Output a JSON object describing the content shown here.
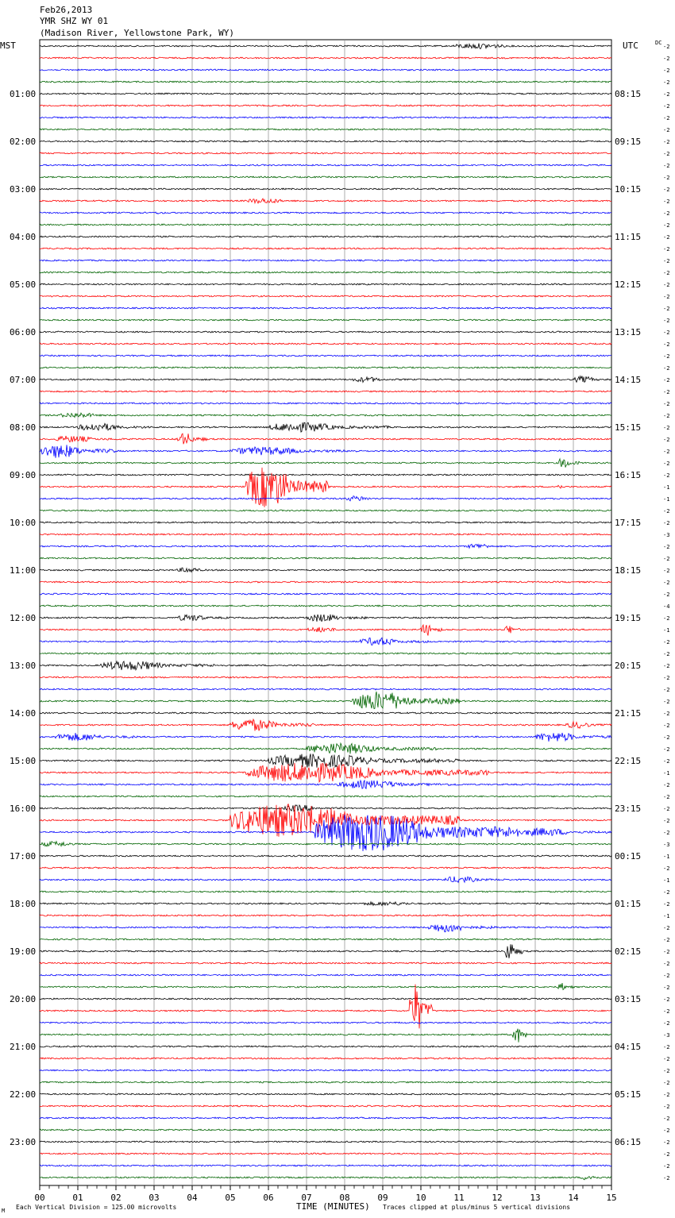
{
  "chart_data": {
    "type": "line",
    "title_lines": [
      "Feb26,2013",
      "YMR SHZ WY 01",
      "(Madison River, Yellowstone Park, WY)"
    ],
    "left_timezone": "MST",
    "right_timezone": "UTC",
    "dc_header": "DC",
    "xlabel": "TIME (MINUTES)",
    "x_ticks": [
      "00",
      "01",
      "02",
      "03",
      "04",
      "05",
      "06",
      "07",
      "08",
      "09",
      "10",
      "11",
      "12",
      "13",
      "14",
      "15"
    ],
    "xlim": [
      0,
      15
    ],
    "left_hour_labels": [
      "01:00",
      "02:00",
      "03:00",
      "04:00",
      "05:00",
      "06:00",
      "07:00",
      "08:00",
      "09:00",
      "10:00",
      "11:00",
      "12:00",
      "13:00",
      "14:00",
      "15:00",
      "16:00",
      "17:00",
      "18:00",
      "19:00",
      "20:00",
      "21:00",
      "22:00",
      "23:00"
    ],
    "right_hour_labels": [
      "08:15",
      "09:15",
      "10:15",
      "11:15",
      "12:15",
      "13:15",
      "14:15",
      "15:15",
      "16:15",
      "17:15",
      "18:15",
      "19:15",
      "20:15",
      "21:15",
      "22:15",
      "23:15",
      "00:15",
      "01:15",
      "02:15",
      "03:15",
      "04:15",
      "05:15",
      "06:15"
    ],
    "trace_colors": [
      "#000000",
      "#ff0000",
      "#0000ff",
      "#006400"
    ],
    "dc_offsets": [
      "-2",
      "-2",
      "-2",
      "-2",
      "-2",
      "-2",
      "-2",
      "-2",
      "-2",
      "-2",
      "-2",
      "-2",
      "-2",
      "-2",
      "-2",
      "-2",
      "-2",
      "-2",
      "-2",
      "-2",
      "-2",
      "-2",
      "-2",
      "-2",
      "-2",
      "-2",
      "-2",
      "-2",
      "-2",
      "-2",
      "-2",
      "-2",
      "-2",
      "-2",
      "-2",
      "-2",
      "-2",
      "-1",
      "-1",
      "-2",
      "-2",
      "-3",
      "-2",
      "-2",
      "-2",
      "-2",
      "-2",
      "-4",
      "-2",
      "-1",
      "-2",
      "-2",
      "-2",
      "-2",
      "-2",
      "-2",
      "-2",
      "-2",
      "-2",
      "-2",
      "-2",
      "-1",
      "-2",
      "-2",
      "-2",
      "-2",
      "-2",
      "-3",
      "-1",
      "-2",
      "-1",
      "-2",
      "-2",
      "-1",
      "-2",
      "-2",
      "-2",
      "-2",
      "-2",
      "-2",
      "-2",
      "-2",
      "-2",
      "-3",
      "-2",
      "-2",
      "-2",
      "-2",
      "-2",
      "-2",
      "-2",
      "-2",
      "-2",
      "-2",
      "-2",
      "-2"
    ],
    "footer_left": "Each Vertical Division =  125.00 microvolts",
    "footer_right": "Traces clipped at plus/minus 5 vertical divisions",
    "corner_mark": "M",
    "events": [
      {
        "line": 0,
        "start": 10.8,
        "end": 13.4,
        "amp": 4
      },
      {
        "line": 13,
        "start": 5.4,
        "end": 7.2,
        "amp": 4
      },
      {
        "line": 14,
        "start": 3.0,
        "end": 3.5,
        "amp": 2
      },
      {
        "line": 28,
        "start": 8.2,
        "end": 9.6,
        "amp": 4
      },
      {
        "line": 28,
        "start": 14.0,
        "end": 15.0,
        "amp": 5
      },
      {
        "line": 31,
        "start": 0.5,
        "end": 2.3,
        "amp": 4
      },
      {
        "line": 32,
        "start": 1.0,
        "end": 3.0,
        "amp": 6
      },
      {
        "line": 32,
        "start": 6.0,
        "end": 9.2,
        "amp": 7
      },
      {
        "line": 33,
        "start": 0.4,
        "end": 2.2,
        "amp": 5
      },
      {
        "line": 33,
        "start": 3.6,
        "end": 4.4,
        "amp": 9
      },
      {
        "line": 34,
        "start": 0.0,
        "end": 2.0,
        "amp": 10
      },
      {
        "line": 34,
        "start": 5.0,
        "end": 8.4,
        "amp": 6
      },
      {
        "line": 35,
        "start": 13.6,
        "end": 14.2,
        "amp": 8
      },
      {
        "line": 37,
        "start": 5.4,
        "end": 7.6,
        "amp": 30
      },
      {
        "line": 37,
        "start": 13.6,
        "end": 13.7,
        "amp": 12
      },
      {
        "line": 38,
        "start": 8.0,
        "end": 9.2,
        "amp": 4
      },
      {
        "line": 42,
        "start": 11.2,
        "end": 12.4,
        "amp": 4
      },
      {
        "line": 44,
        "start": 3.6,
        "end": 4.8,
        "amp": 4
      },
      {
        "line": 48,
        "start": 3.6,
        "end": 5.0,
        "amp": 5
      },
      {
        "line": 48,
        "start": 7.0,
        "end": 8.6,
        "amp": 6
      },
      {
        "line": 49,
        "start": 7.0,
        "end": 8.4,
        "amp": 4
      },
      {
        "line": 49,
        "start": 10.0,
        "end": 10.6,
        "amp": 9
      },
      {
        "line": 49,
        "start": 12.2,
        "end": 12.6,
        "amp": 7
      },
      {
        "line": 50,
        "start": 8.4,
        "end": 10.2,
        "amp": 6
      },
      {
        "line": 52,
        "start": 1.6,
        "end": 4.6,
        "amp": 7
      },
      {
        "line": 55,
        "start": 8.2,
        "end": 11.0,
        "amp": 14
      },
      {
        "line": 57,
        "start": 5.0,
        "end": 7.2,
        "amp": 9
      },
      {
        "line": 57,
        "start": 13.8,
        "end": 15.0,
        "amp": 5
      },
      {
        "line": 58,
        "start": 0.4,
        "end": 2.6,
        "amp": 6
      },
      {
        "line": 58,
        "start": 13.0,
        "end": 15.0,
        "amp": 7
      },
      {
        "line": 59,
        "start": 7.0,
        "end": 10.4,
        "amp": 8
      },
      {
        "line": 60,
        "start": 6.0,
        "end": 11.0,
        "amp": 10
      },
      {
        "line": 61,
        "start": 5.4,
        "end": 11.8,
        "amp": 14
      },
      {
        "line": 62,
        "start": 7.8,
        "end": 11.0,
        "amp": 6
      },
      {
        "line": 64,
        "start": 6.4,
        "end": 8.0,
        "amp": 5
      },
      {
        "line": 65,
        "start": 5.0,
        "end": 11.0,
        "amp": 24
      },
      {
        "line": 66,
        "start": 7.2,
        "end": 12.6,
        "amp": 28
      },
      {
        "line": 66,
        "start": 12.6,
        "end": 15.0,
        "amp": 6
      },
      {
        "line": 67,
        "start": 0.0,
        "end": 1.6,
        "amp": 4
      },
      {
        "line": 70,
        "start": 10.6,
        "end": 12.2,
        "amp": 5
      },
      {
        "line": 72,
        "start": 8.4,
        "end": 11.0,
        "amp": 3
      },
      {
        "line": 74,
        "start": 10.2,
        "end": 12.0,
        "amp": 7
      },
      {
        "line": 76,
        "start": 12.2,
        "end": 12.7,
        "amp": 14
      },
      {
        "line": 79,
        "start": 13.6,
        "end": 14.0,
        "amp": 6
      },
      {
        "line": 81,
        "start": 9.7,
        "end": 10.3,
        "amp": 38
      },
      {
        "line": 83,
        "start": 12.4,
        "end": 12.8,
        "amp": 14
      },
      {
        "line": 95,
        "start": 14.2,
        "end": 15.0,
        "amp": 4
      }
    ]
  }
}
